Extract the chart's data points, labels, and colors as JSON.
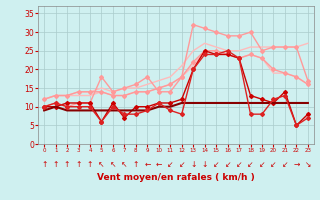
{
  "x": [
    0,
    1,
    2,
    3,
    4,
    5,
    6,
    7,
    8,
    9,
    10,
    11,
    12,
    13,
    14,
    15,
    16,
    17,
    18,
    19,
    20,
    21,
    22,
    23
  ],
  "background_color": "#cff0f0",
  "grid_color": "#aacccc",
  "xlabel": "Vent moyen/en rafales ( km/h )",
  "xlabel_color": "#cc0000",
  "tick_color": "#cc0000",
  "ylim": [
    0,
    37
  ],
  "yticks": [
    0,
    5,
    10,
    15,
    20,
    25,
    30,
    35
  ],
  "lines": [
    {
      "y": [
        12,
        13,
        13,
        14,
        14,
        15,
        14,
        15,
        15,
        16,
        17,
        18,
        21,
        25,
        27,
        26,
        25,
        25,
        26,
        26,
        26,
        26,
        26,
        27
      ],
      "color": "#ffbbbb",
      "lw": 1.0,
      "marker": null,
      "ms": 0
    },
    {
      "y": [
        12,
        13,
        13,
        13,
        13,
        14,
        13,
        13,
        14,
        14,
        15,
        16,
        18,
        21,
        25,
        25,
        24,
        23,
        24,
        23,
        19,
        19,
        18,
        16
      ],
      "color": "#ffbbbb",
      "lw": 1.0,
      "marker": null,
      "ms": 0
    },
    {
      "y": [
        10,
        11,
        10,
        11,
        11,
        18,
        14,
        15,
        16,
        18,
        14,
        14,
        18,
        32,
        31,
        30,
        29,
        29,
        30,
        25,
        26,
        26,
        26,
        17
      ],
      "color": "#ff9999",
      "lw": 1.0,
      "marker": "D",
      "ms": 2.0
    },
    {
      "y": [
        12,
        13,
        13,
        14,
        14,
        14,
        13,
        13,
        14,
        14,
        15,
        16,
        18,
        22,
        25,
        25,
        24,
        23,
        24,
        23,
        20,
        19,
        18,
        16
      ],
      "color": "#ff9999",
      "lw": 1.0,
      "marker": "D",
      "ms": 2.0
    },
    {
      "y": [
        10,
        10,
        11,
        11,
        11,
        6,
        11,
        7,
        10,
        10,
        11,
        11,
        12,
        20,
        25,
        24,
        24,
        23,
        13,
        12,
        11,
        14,
        5,
        8
      ],
      "color": "#cc0000",
      "lw": 1.0,
      "marker": "D",
      "ms": 2.0
    },
    {
      "y": [
        9,
        10,
        9,
        9,
        9,
        9,
        9,
        9,
        9,
        9,
        10,
        10,
        11,
        11,
        11,
        11,
        11,
        11,
        11,
        11,
        11,
        11,
        11,
        11
      ],
      "color": "#880000",
      "lw": 1.5,
      "marker": null,
      "ms": 0
    },
    {
      "y": [
        10,
        11,
        10,
        10,
        10,
        6,
        10,
        8,
        8,
        9,
        11,
        9,
        8,
        20,
        24,
        24,
        25,
        23,
        8,
        8,
        12,
        13,
        5,
        7
      ],
      "color": "#dd2222",
      "lw": 1.0,
      "marker": "D",
      "ms": 2.0
    }
  ],
  "wind_arrows": [
    "↑",
    "↑",
    "↑",
    "↑",
    "↑",
    "↖",
    "↖",
    "↖",
    "↑",
    "←",
    "←",
    "↙",
    "↙",
    "↓",
    "↓",
    "↙",
    "↙",
    "↙",
    "↙",
    "↙",
    "↙",
    "↙",
    "→",
    "↘"
  ],
  "arrow_color": "#cc0000",
  "arrow_fontsize": 5.5
}
